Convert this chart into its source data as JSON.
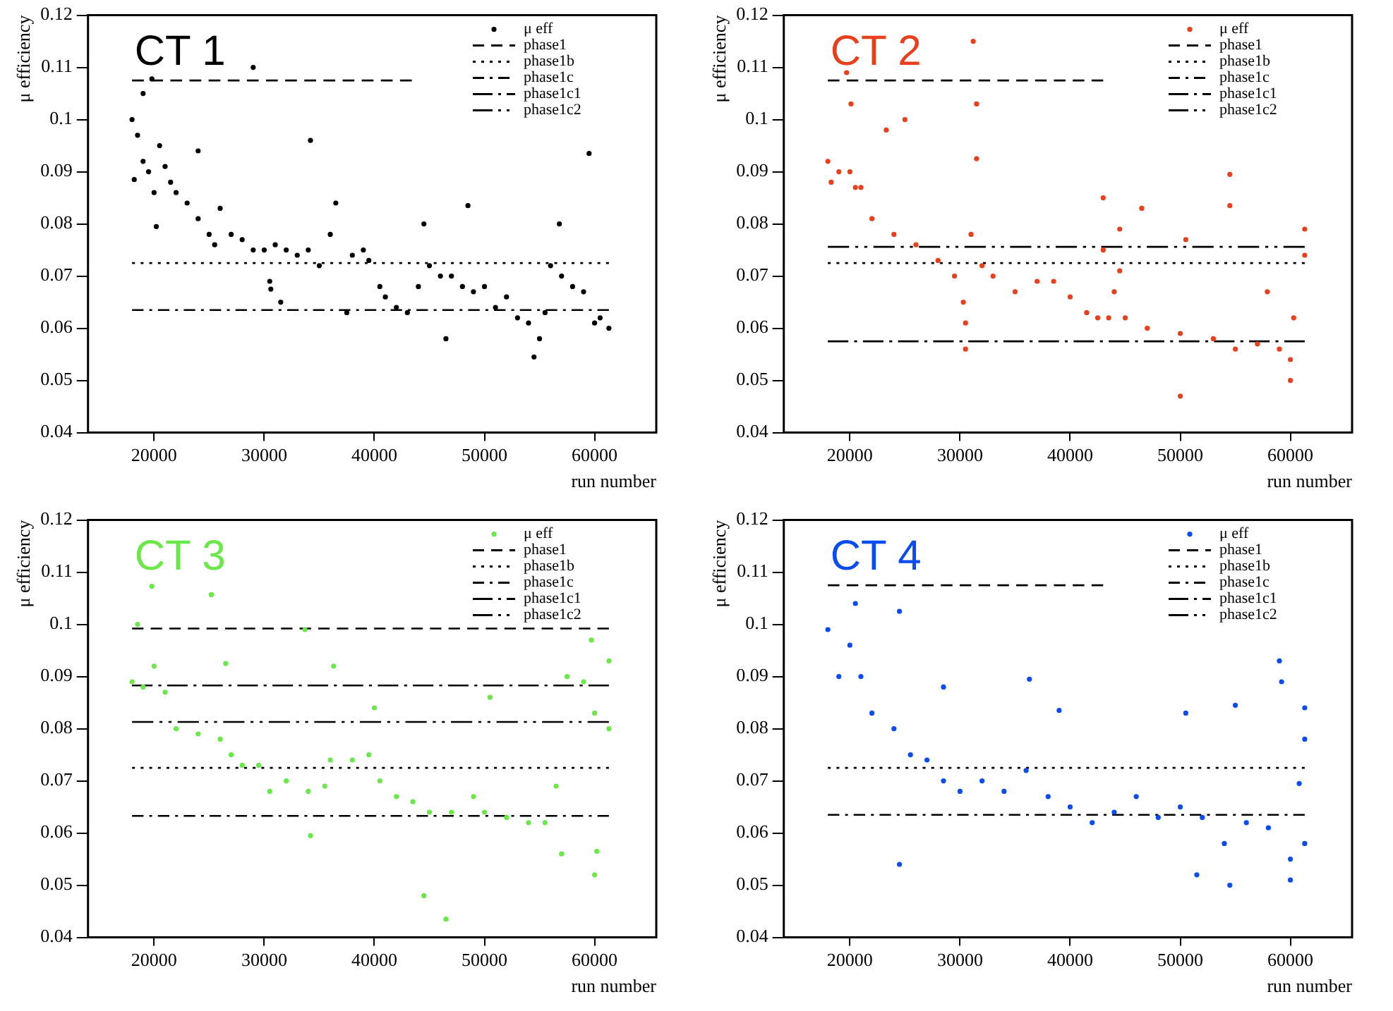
{
  "chart_data": [
    {
      "type": "scatter",
      "title": "CT 1",
      "xlabel": "run number",
      "ylabel": "μ efficiency",
      "xlim": [
        14000,
        65600
      ],
      "ylim": [
        0.04,
        0.12
      ],
      "xticks": [
        20000,
        30000,
        40000,
        50000,
        60000
      ],
      "yticks": [
        0.04,
        0.05,
        0.06,
        0.07,
        0.08,
        0.09,
        0.1,
        0.11,
        0.12
      ],
      "grid": false,
      "legend": "top right",
      "series": [
        {
          "name": "μ eff",
          "marker": "circle",
          "color": "#000000",
          "x": [
            18000,
            18200,
            18500,
            19000,
            19000,
            19500,
            19800,
            20000,
            20200,
            20500,
            21000,
            21500,
            22000,
            23000,
            24000,
            24000,
            25000,
            25500,
            26000,
            27000,
            28000,
            29000,
            29000,
            30000,
            30500,
            30600,
            31000,
            31500,
            32000,
            33000,
            34000,
            34200,
            35000,
            36000,
            36500,
            37500,
            38000,
            39000,
            39500,
            40500,
            41000,
            42000,
            43000,
            44000,
            44500,
            45000,
            46000,
            46500,
            47000,
            48000,
            48500,
            49000,
            50000,
            51000,
            52000,
            53000,
            54000,
            54500,
            55000,
            55500,
            56000,
            56800,
            57000,
            58000,
            59000,
            59500,
            60000,
            60500,
            61300
          ],
          "values": [
            0.1,
            0.0885,
            0.097,
            0.105,
            0.092,
            0.09,
            0.1078,
            0.086,
            0.0795,
            0.095,
            0.091,
            0.088,
            0.086,
            0.084,
            0.081,
            0.094,
            0.078,
            0.076,
            0.083,
            0.078,
            0.077,
            0.11,
            0.075,
            0.075,
            0.069,
            0.0675,
            0.076,
            0.065,
            0.075,
            0.074,
            0.075,
            0.096,
            0.072,
            0.078,
            0.084,
            0.063,
            0.074,
            0.075,
            0.073,
            0.068,
            0.066,
            0.064,
            0.063,
            0.068,
            0.08,
            0.072,
            0.07,
            0.058,
            0.07,
            0.068,
            0.0835,
            0.067,
            0.068,
            0.064,
            0.066,
            0.062,
            0.061,
            0.0545,
            0.058,
            0.063,
            0.072,
            0.08,
            0.07,
            0.068,
            0.067,
            0.0935,
            0.061,
            0.062,
            0.06
          ]
        },
        {
          "name": "phase1",
          "type": "line",
          "line_style": "dashed",
          "marker": "none",
          "color": "#000000",
          "x": [
            18000,
            43400
          ],
          "values": [
            0.1075,
            0.1075
          ]
        },
        {
          "name": "phase1b",
          "type": "line",
          "line_style": "dotted",
          "marker": "none",
          "color": "#000000",
          "x": [
            18000,
            61300
          ],
          "values": [
            0.0725,
            0.0725
          ]
        },
        {
          "name": "phase1c",
          "type": "line",
          "line_style": "dashdot",
          "marker": "none",
          "color": "#000000",
          "x": [
            18000,
            61300
          ],
          "values": [
            0.0635,
            0.0635
          ]
        },
        {
          "name": "phase1c1",
          "type": "line",
          "line_style": "longdashdot",
          "marker": "none",
          "color": "#000000"
        },
        {
          "name": "phase1c2",
          "type": "line",
          "line_style": "longdashdotdot",
          "marker": "none",
          "color": "#000000"
        }
      ]
    },
    {
      "type": "scatter",
      "title": "CT 2",
      "xlabel": "run number",
      "ylabel": "μ efficiency",
      "xlim": [
        14000,
        65600
      ],
      "ylim": [
        0.04,
        0.12
      ],
      "xticks": [
        20000,
        30000,
        40000,
        50000,
        60000
      ],
      "yticks": [
        0.04,
        0.05,
        0.06,
        0.07,
        0.08,
        0.09,
        0.1,
        0.11,
        0.12
      ],
      "grid": false,
      "legend": "top right",
      "series": [
        {
          "name": "μ eff",
          "marker": "circle",
          "color": "#e8401c",
          "x": [
            18000,
            18300,
            19000,
            19700,
            20000,
            20100,
            20500,
            21000,
            22000,
            23300,
            24000,
            25000,
            26000,
            28000,
            29500,
            30300,
            30500,
            30500,
            31000,
            31200,
            31500,
            31500,
            32000,
            33000,
            35000,
            37000,
            38500,
            40000,
            41500,
            42500,
            43000,
            43000,
            43500,
            44000,
            44500,
            44500,
            45000,
            46500,
            47000,
            50000,
            50000,
            50500,
            53000,
            54500,
            54500,
            55000,
            57000,
            57900,
            59000,
            60000,
            60000,
            60300,
            61300,
            61300
          ],
          "values": [
            0.092,
            0.088,
            0.09,
            0.109,
            0.09,
            0.103,
            0.087,
            0.087,
            0.081,
            0.098,
            0.078,
            0.1,
            0.076,
            0.073,
            0.07,
            0.065,
            0.061,
            0.056,
            0.078,
            0.115,
            0.103,
            0.0925,
            0.072,
            0.07,
            0.067,
            0.069,
            0.069,
            0.066,
            0.063,
            0.062,
            0.085,
            0.075,
            0.062,
            0.067,
            0.079,
            0.071,
            0.062,
            0.083,
            0.06,
            0.059,
            0.047,
            0.077,
            0.058,
            0.0895,
            0.0835,
            0.056,
            0.057,
            0.067,
            0.056,
            0.054,
            0.05,
            0.062,
            0.074,
            0.079
          ]
        },
        {
          "name": "phase1",
          "type": "line",
          "line_style": "dashed",
          "marker": "none",
          "color": "#000000",
          "x": [
            18000,
            43000
          ],
          "values": [
            0.1075,
            0.1075
          ]
        },
        {
          "name": "phase1b",
          "type": "line",
          "line_style": "dotted",
          "marker": "none",
          "color": "#000000",
          "x": [
            18000,
            61300
          ],
          "values": [
            0.0725,
            0.0725
          ]
        },
        {
          "name": "phase1c",
          "type": "line",
          "line_style": "dashdot",
          "marker": "none",
          "color": "#000000"
        },
        {
          "name": "phase1c1",
          "type": "line",
          "line_style": "longdashdot",
          "marker": "none",
          "color": "#000000",
          "x": [
            18000,
            61300
          ],
          "values": [
            0.0575,
            0.0575
          ]
        },
        {
          "name": "phase1c2",
          "type": "line",
          "line_style": "longdashdotdot",
          "marker": "none",
          "color": "#000000",
          "x": [
            18000,
            61300
          ],
          "values": [
            0.0756,
            0.0756
          ]
        }
      ]
    },
    {
      "type": "scatter",
      "title": "CT 3",
      "xlabel": "run number",
      "ylabel": "μ efficiency",
      "xlim": [
        14000,
        65600
      ],
      "ylim": [
        0.04,
        0.12
      ],
      "xticks": [
        20000,
        30000,
        40000,
        50000,
        60000
      ],
      "yticks": [
        0.04,
        0.05,
        0.06,
        0.07,
        0.08,
        0.09,
        0.1,
        0.11,
        0.12
      ],
      "grid": false,
      "legend": "top right",
      "series": [
        {
          "name": "μ eff",
          "marker": "circle",
          "color": "#6ae84a",
          "x": [
            18000,
            18500,
            19000,
            19800,
            20000,
            21000,
            22000,
            24000,
            25200,
            26000,
            26500,
            27000,
            28000,
            29500,
            30500,
            32000,
            33700,
            34000,
            34200,
            35500,
            36000,
            36300,
            38000,
            39500,
            40000,
            40500,
            42000,
            43500,
            44500,
            45000,
            46500,
            47000,
            49000,
            50000,
            50500,
            52000,
            54000,
            55500,
            56500,
            57000,
            57500,
            59000,
            59700,
            60000,
            60000,
            60200,
            61300,
            61300
          ],
          "values": [
            0.089,
            0.1,
            0.088,
            0.1073,
            0.092,
            0.087,
            0.08,
            0.079,
            0.1057,
            0.078,
            0.0925,
            0.075,
            0.073,
            0.073,
            0.068,
            0.07,
            0.099,
            0.068,
            0.0595,
            0.069,
            0.074,
            0.092,
            0.074,
            0.075,
            0.084,
            0.07,
            0.067,
            0.066,
            0.048,
            0.064,
            0.0435,
            0.064,
            0.067,
            0.064,
            0.086,
            0.063,
            0.062,
            0.062,
            0.069,
            0.056,
            0.09,
            0.089,
            0.097,
            0.083,
            0.052,
            0.0565,
            0.08,
            0.093
          ]
        },
        {
          "name": "phase1",
          "type": "line",
          "line_style": "dashed",
          "marker": "none",
          "color": "#000000",
          "x": [
            18000,
            61300
          ],
          "values": [
            0.0992,
            0.0992
          ]
        },
        {
          "name": "phase1b",
          "type": "line",
          "line_style": "dotted",
          "marker": "none",
          "color": "#000000",
          "x": [
            18000,
            61300
          ],
          "values": [
            0.0725,
            0.0725
          ]
        },
        {
          "name": "phase1c",
          "type": "line",
          "line_style": "dashdot",
          "marker": "none",
          "color": "#000000",
          "x": [
            18000,
            61300
          ],
          "values": [
            0.0633,
            0.0633
          ]
        },
        {
          "name": "phase1c1",
          "type": "line",
          "line_style": "longdashdot",
          "marker": "none",
          "color": "#000000",
          "x": [
            18000,
            61300
          ],
          "values": [
            0.0883,
            0.0883
          ]
        },
        {
          "name": "phase1c2",
          "type": "line",
          "line_style": "longdashdotdot",
          "marker": "none",
          "color": "#000000",
          "x": [
            18000,
            61300
          ],
          "values": [
            0.0813,
            0.0813
          ]
        }
      ]
    },
    {
      "type": "scatter",
      "title": "CT 4",
      "xlabel": "run number",
      "ylabel": "μ efficiency",
      "xlim": [
        14000,
        65600
      ],
      "ylim": [
        0.04,
        0.12
      ],
      "xticks": [
        20000,
        30000,
        40000,
        50000,
        60000
      ],
      "yticks": [
        0.04,
        0.05,
        0.06,
        0.07,
        0.08,
        0.09,
        0.1,
        0.11,
        0.12
      ],
      "grid": false,
      "legend": "top right",
      "series": [
        {
          "name": "μ eff",
          "marker": "circle",
          "color": "#0a4cf0",
          "x": [
            18000,
            19000,
            20000,
            20500,
            21000,
            22000,
            24000,
            24500,
            24500,
            25500,
            27000,
            28500,
            28500,
            30000,
            32000,
            34000,
            36000,
            36300,
            38000,
            39000,
            40000,
            42000,
            44000,
            46000,
            48000,
            50000,
            50500,
            51500,
            52000,
            54000,
            54500,
            55000,
            56000,
            58000,
            59000,
            59200,
            60000,
            60000,
            60800,
            61300,
            61300,
            61300
          ],
          "values": [
            0.099,
            0.09,
            0.096,
            0.104,
            0.09,
            0.083,
            0.08,
            0.1025,
            0.054,
            0.075,
            0.074,
            0.07,
            0.088,
            0.068,
            0.07,
            0.068,
            0.072,
            0.0895,
            0.067,
            0.0835,
            0.065,
            0.062,
            0.064,
            0.067,
            0.063,
            0.065,
            0.083,
            0.052,
            0.063,
            0.058,
            0.05,
            0.0845,
            0.062,
            0.061,
            0.093,
            0.089,
            0.055,
            0.051,
            0.0695,
            0.058,
            0.084,
            0.078
          ]
        },
        {
          "name": "phase1",
          "type": "line",
          "line_style": "dashed",
          "marker": "none",
          "color": "#000000",
          "x": [
            18000,
            43000
          ],
          "values": [
            0.1075,
            0.1075
          ]
        },
        {
          "name": "phase1b",
          "type": "line",
          "line_style": "dotted",
          "marker": "none",
          "color": "#000000",
          "x": [
            18000,
            61300
          ],
          "values": [
            0.0725,
            0.0725
          ]
        },
        {
          "name": "phase1c",
          "type": "line",
          "line_style": "dashdot",
          "marker": "none",
          "color": "#000000",
          "x": [
            18000,
            61300
          ],
          "values": [
            0.0635,
            0.0635
          ]
        },
        {
          "name": "phase1c1",
          "type": "line",
          "line_style": "longdashdot",
          "marker": "none",
          "color": "#000000"
        },
        {
          "name": "phase1c2",
          "type": "line",
          "line_style": "longdashdotdot",
          "marker": "none",
          "color": "#000000"
        }
      ]
    }
  ]
}
